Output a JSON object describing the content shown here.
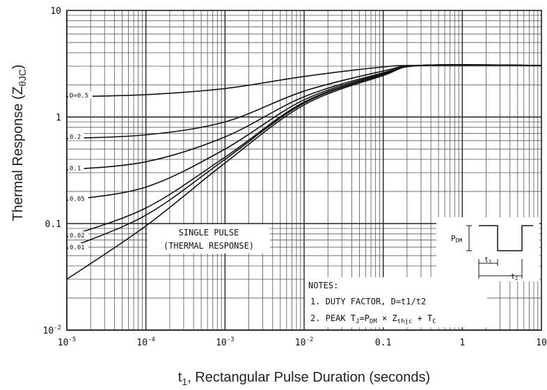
{
  "chart_data": {
    "type": "line",
    "ylabel": "Thermal Response (Z",
    "ylabel_subscript": "θJC",
    "ylabel_close": ")",
    "xlabel_prefix": "t",
    "xlabel_subscript": "1",
    "xlabel": ", Rectangular Pulse Duration (seconds)",
    "x_scale": "log",
    "y_scale": "log",
    "xlim": [
      1e-05,
      10
    ],
    "ylim": [
      0.01,
      10
    ],
    "grid": true,
    "x_ticks": [
      {
        "value": 1e-05,
        "base": "10",
        "exp": "-5"
      },
      {
        "value": 0.0001,
        "base": "10",
        "exp": "-4"
      },
      {
        "value": 0.001,
        "base": "10",
        "exp": "-3"
      },
      {
        "value": 0.01,
        "base": "10",
        "exp": "-2"
      },
      {
        "value": 0.1,
        "label": "0.1"
      },
      {
        "value": 1,
        "label": "1"
      },
      {
        "value": 10,
        "label": "10"
      }
    ],
    "y_ticks": [
      {
        "value": 10,
        "label": "10"
      },
      {
        "value": 1,
        "label": "1"
      },
      {
        "value": 0.1,
        "label": "0.1"
      },
      {
        "value": 0.01,
        "base": "10",
        "exp": "-2"
      }
    ],
    "series": [
      {
        "name": "D=0.5",
        "x": [
          1e-05,
          0.0001,
          0.001,
          0.01,
          0.1,
          0.3,
          10
        ],
        "y": [
          1.55,
          1.62,
          1.85,
          2.4,
          2.95,
          3.05,
          3.05
        ]
      },
      {
        "name": "0.2",
        "x": [
          1e-05,
          0.0001,
          0.001,
          0.01,
          0.1,
          0.3,
          10
        ],
        "y": [
          0.63,
          0.68,
          0.9,
          1.75,
          2.7,
          3.05,
          3.05
        ]
      },
      {
        "name": "0.1",
        "x": [
          1e-05,
          0.0001,
          0.001,
          0.01,
          0.1,
          0.3,
          10
        ],
        "y": [
          0.32,
          0.38,
          0.65,
          1.55,
          2.6,
          3.05,
          3.05
        ]
      },
      {
        "name": "0.05",
        "x": [
          1e-05,
          0.0001,
          0.001,
          0.01,
          0.1,
          0.3,
          10
        ],
        "y": [
          0.165,
          0.22,
          0.5,
          1.45,
          2.55,
          3.05,
          3.05
        ]
      },
      {
        "name": "0.02",
        "x": [
          1e-05,
          0.0001,
          0.001,
          0.01,
          0.1,
          0.3,
          10
        ],
        "y": [
          0.075,
          0.14,
          0.42,
          1.38,
          2.5,
          3.05,
          3.05
        ]
      },
      {
        "name": "0.01",
        "x": [
          1e-05,
          0.0001,
          0.001,
          0.01,
          0.1,
          0.3,
          10
        ],
        "y": [
          0.058,
          0.12,
          0.4,
          1.35,
          2.5,
          3.05,
          3.05
        ]
      },
      {
        "name": "SINGLE PULSE",
        "x": [
          1e-05,
          0.0001,
          0.001,
          0.01,
          0.1,
          0.3,
          10
        ],
        "y": [
          0.03,
          0.095,
          0.37,
          1.3,
          2.45,
          3.05,
          3.05
        ]
      }
    ],
    "single_pulse_label": [
      "SINGLE PULSE",
      "(THERMAL RESPONSE)"
    ],
    "notes": {
      "title": "NOTES:",
      "line1": "1. DUTY FACTOR, D=t1/t2",
      "line2_a": "2. PEAK T",
      "line2_b": "J",
      "line2_c": "=P",
      "line2_d": "DM",
      "line2_e": " × Z",
      "line2_f": "thjc",
      "line2_g": " + T",
      "line2_h": "C"
    },
    "inset": {
      "pdm_label": "P",
      "pdm_sub": "DM",
      "t1_label": "t",
      "t1_sub": "1",
      "t2_label": "t",
      "t2_sub": "2"
    }
  }
}
